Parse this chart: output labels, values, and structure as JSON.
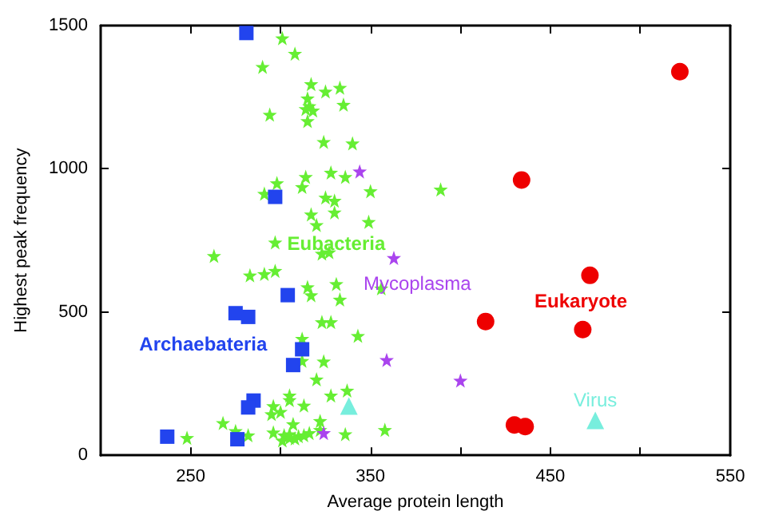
{
  "chart_data": {
    "type": "scatter",
    "xlabel": "Average protein length",
    "ylabel": "Highest peak frequency",
    "xlim": [
      200,
      550
    ],
    "ylim": [
      0,
      1500
    ],
    "xticks": [
      {
        "value": 250,
        "label": "250"
      },
      {
        "value": 300,
        "label": null
      },
      {
        "value": 350,
        "label": "350"
      },
      {
        "value": 400,
        "label": null
      },
      {
        "value": 450,
        "label": "450"
      },
      {
        "value": 500,
        "label": null
      },
      {
        "value": 550,
        "label": "550"
      }
    ],
    "yticks": [
      0,
      500,
      1000,
      1500
    ],
    "grid": false,
    "legend": false,
    "series": [
      {
        "name": "Eubacteria",
        "color": "#66ee33",
        "marker": "star",
        "x": [
          301,
          308,
          290,
          317,
          325,
          333,
          315,
          316,
          335,
          314,
          318,
          294,
          315,
          324,
          340,
          314,
          328,
          336,
          291,
          298,
          312,
          325,
          330,
          317,
          330,
          320,
          349,
          297,
          263,
          323,
          327,
          350,
          389,
          283,
          291,
          297,
          315,
          317,
          331,
          333,
          323,
          328,
          343,
          312,
          312,
          324,
          320,
          328,
          337,
          305,
          305,
          313,
          296,
          300,
          295,
          268,
          275,
          282,
          296,
          302,
          307,
          301,
          305,
          310,
          313,
          316,
          322,
          322,
          336,
          248,
          308,
          305,
          358,
          356
        ],
        "values": [
          1456,
          1402,
          1356,
          1296,
          1270,
          1283,
          1246,
          1219,
          1224,
          1209,
          1204,
          1189,
          1167,
          1094,
          1089,
          972,
          987,
          972,
          913,
          950,
          937,
          900,
          889,
          841,
          848,
          804,
          815,
          743,
          696,
          704,
          709,
          922,
          928,
          628,
          633,
          644,
          587,
          559,
          598,
          544,
          465,
          465,
          417,
          407,
          330,
          328,
          265,
          209,
          226,
          209,
          193,
          174,
          172,
          152,
          144,
          113,
          85,
          70,
          80,
          70,
          109,
          52,
          74,
          67,
          70,
          78,
          89,
          120,
          74,
          61,
          59,
          61,
          89,
          583
        ]
      },
      {
        "name": "Archaebateria",
        "color": "#2244ee",
        "marker": "square",
        "x": [
          281,
          297,
          304,
          275,
          282,
          312,
          307,
          285,
          282,
          237,
          276
        ],
        "values": [
          1474,
          902,
          559,
          496,
          483,
          370,
          315,
          191,
          167,
          65,
          56
        ]
      },
      {
        "name": "Mycoplasma",
        "color": "#aa44ee",
        "marker": "star",
        "x": [
          344,
          363,
          359,
          400,
          324
        ],
        "values": [
          991,
          689,
          333,
          261,
          78
        ]
      },
      {
        "name": "Eukaryote",
        "color": "#ee0000",
        "marker": "circle",
        "x": [
          522,
          434,
          472,
          414,
          468,
          430,
          436
        ],
        "values": [
          1339,
          961,
          628,
          467,
          439,
          106,
          100
        ]
      },
      {
        "name": "Virus",
        "color": "#77eedd",
        "marker": "triangle",
        "x": [
          475,
          338
        ],
        "values": [
          122,
          172
        ]
      }
    ]
  }
}
